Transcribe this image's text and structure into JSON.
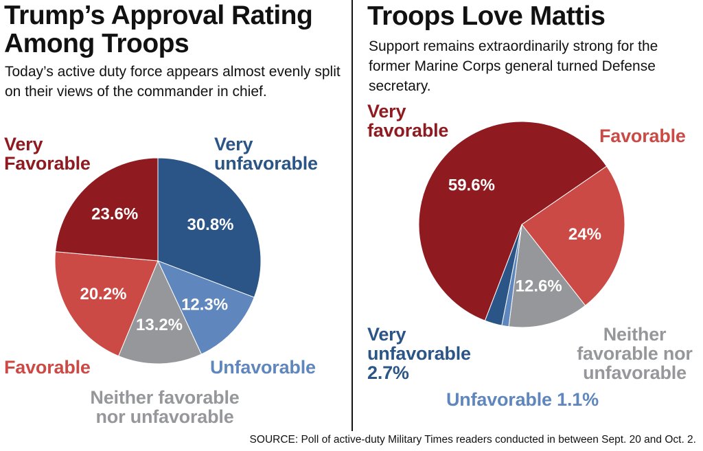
{
  "colors": {
    "very_favorable": "#8f1b20",
    "favorable": "#cc4a45",
    "neither": "#96979a",
    "unfavorable": "#5f86bd",
    "very_unfavorable": "#2b5586"
  },
  "chart_data": [
    {
      "type": "pie",
      "title": "Trump’s Approval Rating Among Troops",
      "subtitle": "Today’s active duty force appears almost evenly split on their views of the commander in chief.",
      "slices": [
        {
          "label_lines": [
            "Very",
            "unfavorable"
          ],
          "value": 30.8,
          "value_label": "30.8%",
          "color": "#2b5586"
        },
        {
          "label_lines": [
            "Unfavorable"
          ],
          "value": 12.3,
          "value_label": "12.3%",
          "color": "#5f86bd"
        },
        {
          "label_lines": [
            "Neither favorable",
            "nor unfavorable"
          ],
          "value": 13.2,
          "value_label": "13.2%",
          "color": "#96979a"
        },
        {
          "label_lines": [
            "Favorable"
          ],
          "value": 20.2,
          "value_label": "20.2%",
          "color": "#cc4a45"
        },
        {
          "label_lines": [
            "Very",
            "Favorable"
          ],
          "value": 23.6,
          "value_label": "23.6%",
          "color": "#8f1b20"
        }
      ]
    },
    {
      "type": "pie",
      "title": "Troops Love Mattis",
      "subtitle": "Support remains extraordinarily strong for the former Marine Corps general turned Defense secretary.",
      "slices": [
        {
          "label_lines": [
            "Favorable"
          ],
          "value": 24,
          "value_label": "24%",
          "color": "#cc4a45"
        },
        {
          "label_lines": [
            "Neither",
            "favorable nor",
            "unfavorable"
          ],
          "value": 12.6,
          "value_label": "12.6%",
          "color": "#96979a"
        },
        {
          "label_lines": [
            "Unfavorable 1.1%"
          ],
          "value": 1.1,
          "value_label": "",
          "color": "#5f86bd"
        },
        {
          "label_lines": [
            "Very",
            "unfavorable",
            "2.7%"
          ],
          "value": 2.7,
          "value_label": "",
          "color": "#2b5586"
        },
        {
          "label_lines": [
            "Very",
            "favorable"
          ],
          "value": 59.6,
          "value_label": "59.6%",
          "color": "#8f1b20"
        }
      ]
    }
  ],
  "source": "SOURCE: Poll of active-duty Military Times readers conducted in between Sept. 20 and Oct. 2."
}
